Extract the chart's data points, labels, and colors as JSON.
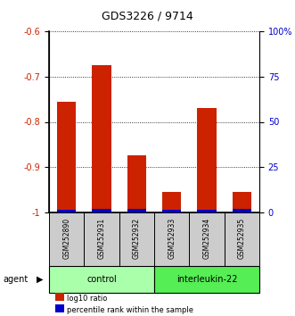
{
  "title": "GDS3226 / 9714",
  "samples": [
    "GSM252890",
    "GSM252931",
    "GSM252932",
    "GSM252933",
    "GSM252934",
    "GSM252935"
  ],
  "log10_ratio": [
    -0.755,
    -0.675,
    -0.873,
    -0.955,
    -0.77,
    -0.955
  ],
  "percentile_rank": [
    1.5,
    2.0,
    2.0,
    1.5,
    1.5,
    2.0
  ],
  "ylim_left": [
    -1.0,
    -0.6
  ],
  "ylim_right": [
    0,
    100
  ],
  "yticks_left": [
    -1.0,
    -0.9,
    -0.8,
    -0.7,
    -0.6
  ],
  "yticks_right": [
    0,
    25,
    50,
    75,
    100
  ],
  "ytick_labels_left": [
    "-1",
    "-0.9",
    "-0.8",
    "-0.7",
    "-0.6"
  ],
  "ytick_labels_right": [
    "0",
    "25",
    "50",
    "75",
    "100%"
  ],
  "control_color": "#aaffaa",
  "interleukin_color": "#55ee55",
  "bar_color_red": "#cc2200",
  "bar_color_blue": "#0000cc",
  "agent_label": "agent",
  "control_label": "control",
  "interleukin_label": "interleukin-22",
  "legend_red": "log10 ratio",
  "legend_blue": "percentile rank within the sample",
  "sample_box_color": "#cccccc",
  "title_fontsize": 9,
  "tick_fontsize": 7,
  "sample_fontsize": 5.5,
  "agent_fontsize": 7,
  "legend_fontsize": 6
}
